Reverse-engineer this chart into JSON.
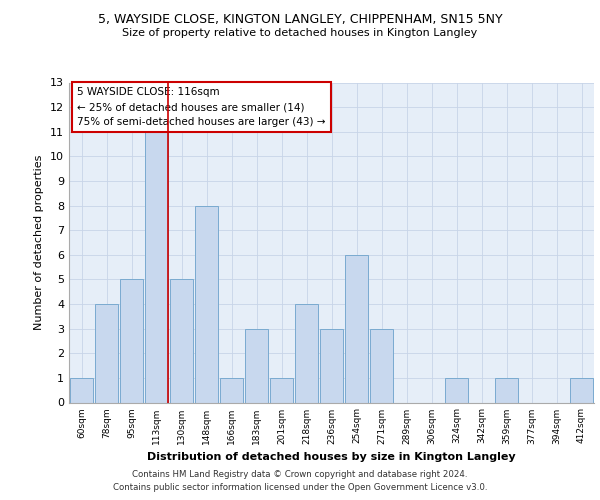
{
  "title1": "5, WAYSIDE CLOSE, KINGTON LANGLEY, CHIPPENHAM, SN15 5NY",
  "title2": "Size of property relative to detached houses in Kington Langley",
  "xlabel": "Distribution of detached houses by size in Kington Langley",
  "ylabel": "Number of detached properties",
  "bins": [
    "60sqm",
    "78sqm",
    "95sqm",
    "113sqm",
    "130sqm",
    "148sqm",
    "166sqm",
    "183sqm",
    "201sqm",
    "218sqm",
    "236sqm",
    "254sqm",
    "271sqm",
    "289sqm",
    "306sqm",
    "324sqm",
    "342sqm",
    "359sqm",
    "377sqm",
    "394sqm",
    "412sqm"
  ],
  "values": [
    1,
    4,
    5,
    11,
    5,
    8,
    1,
    3,
    1,
    4,
    3,
    6,
    3,
    0,
    0,
    1,
    0,
    1,
    0,
    0,
    1
  ],
  "bar_color": "#c8d8ee",
  "bar_edge_color": "#7aaad0",
  "red_line_x": 3.0,
  "annotation_text_line1": "5 WAYSIDE CLOSE: 116sqm",
  "annotation_text_line2": "← 25% of detached houses are smaller (14)",
  "annotation_text_line3": "75% of semi-detached houses are larger (43) →",
  "ylim": [
    0,
    13
  ],
  "yticks": [
    0,
    1,
    2,
    3,
    4,
    5,
    6,
    7,
    8,
    9,
    10,
    11,
    12,
    13
  ],
  "grid_color": "#c8d4e8",
  "background_color": "#e6eef8",
  "footer1": "Contains HM Land Registry data © Crown copyright and database right 2024.",
  "footer2": "Contains public sector information licensed under the Open Government Licence v3.0."
}
